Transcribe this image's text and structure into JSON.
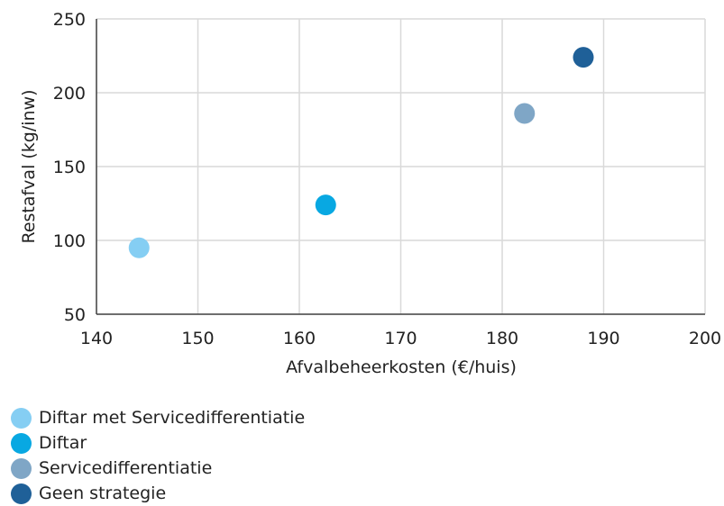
{
  "chart_data": {
    "type": "scatter",
    "xlabel": "Afvalbeheerkosten (€/huis)",
    "ylabel": "Restafval (kg/inw)",
    "xlim": [
      140,
      200
    ],
    "ylim": [
      50,
      250
    ],
    "xticks": [
      "140",
      "150",
      "160",
      "170",
      "180",
      "190",
      "200"
    ],
    "yticks": [
      "50",
      "100",
      "150",
      "200",
      "250"
    ],
    "grid": true,
    "legend_position": "bottom",
    "series": [
      {
        "name": "Diftar met Servicedifferentiatie",
        "color": "#85cef3",
        "points": [
          {
            "x": 144.2,
            "y": 95
          }
        ]
      },
      {
        "name": "Diftar",
        "color": "#08a8e2",
        "points": [
          {
            "x": 162.6,
            "y": 124
          }
        ]
      },
      {
        "name": "Servicedifferentiatie",
        "color": "#7fa6c6",
        "points": [
          {
            "x": 182.2,
            "y": 186
          }
        ]
      },
      {
        "name": "Geen strategie",
        "color": "#1f6098",
        "points": [
          {
            "x": 188,
            "y": 224
          }
        ]
      }
    ]
  }
}
